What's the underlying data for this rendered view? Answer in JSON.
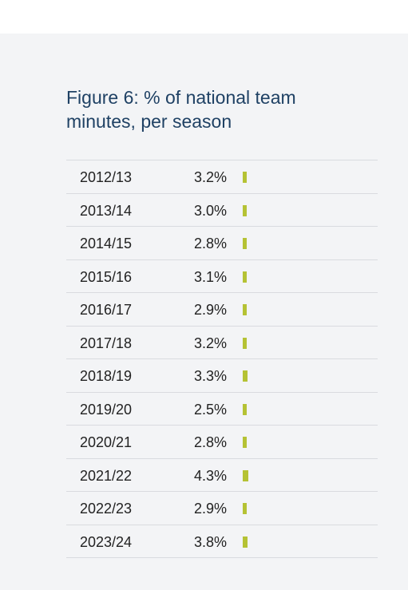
{
  "title": "Figure 6: % of national team minutes, per season",
  "colors": {
    "bar": "#b5c234",
    "title": "#1f4164"
  },
  "chart_data": {
    "type": "bar",
    "title": "Figure 6: % of national team minutes, per season",
    "xlabel": "",
    "ylabel": "",
    "unit": "%",
    "categories": [
      "2012/13",
      "2013/14",
      "2014/15",
      "2015/16",
      "2016/17",
      "2017/18",
      "2018/19",
      "2019/20",
      "2020/21",
      "2021/22",
      "2022/23",
      "2023/24"
    ],
    "values": [
      3.2,
      3.0,
      2.8,
      3.1,
      2.9,
      3.2,
      3.3,
      2.5,
      2.8,
      4.3,
      2.9,
      3.8
    ],
    "labels": [
      "3.2%",
      "3.0%",
      "2.8%",
      "3.1%",
      "2.9%",
      "3.2%",
      "3.3%",
      "2.5%",
      "2.8%",
      "4.3%",
      "2.9%",
      "3.8%"
    ],
    "ylim": [
      0,
      100
    ]
  }
}
